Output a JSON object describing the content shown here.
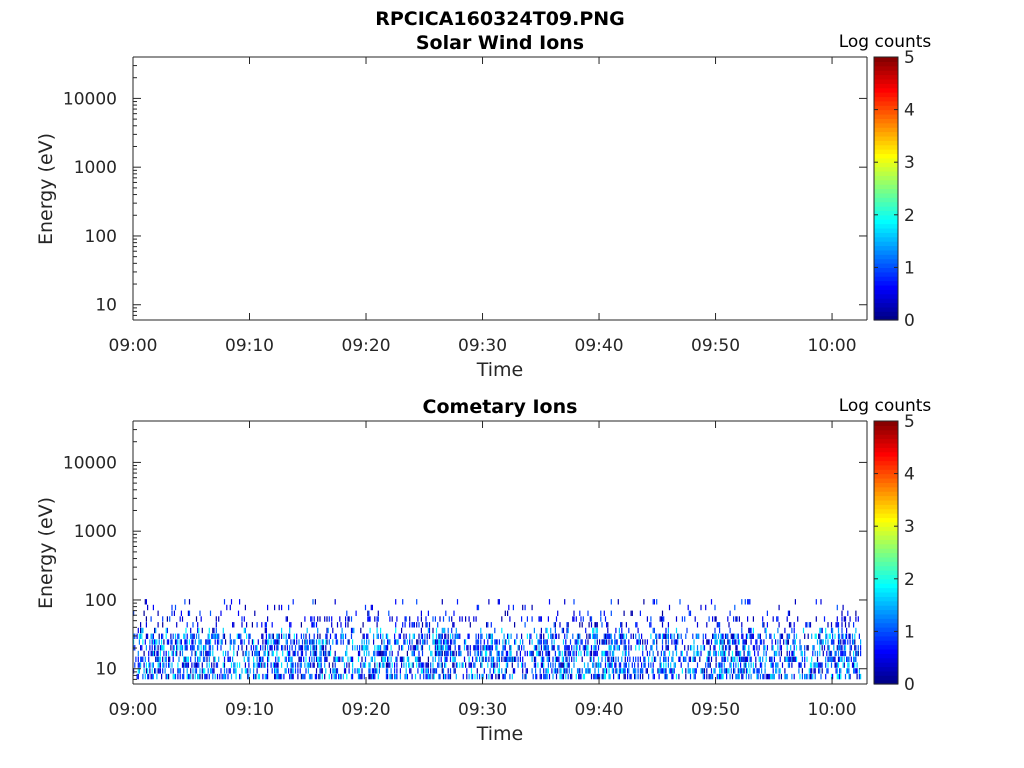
{
  "figure_title": "RPCICA160324T09.PNG",
  "chart_data": [
    {
      "type": "heatmap",
      "title": "Solar Wind Ions",
      "xlabel": "Time",
      "ylabel": "Energy (eV)",
      "x_ticks": [
        "09:00",
        "09:10",
        "09:20",
        "09:30",
        "09:40",
        "09:50",
        "10:00"
      ],
      "x_range_minutes": [
        0,
        63
      ],
      "y_scale": "log",
      "y_ticks": [
        10,
        100,
        1000,
        10000
      ],
      "y_tick_labels": [
        "10",
        "100",
        "1000",
        "10000"
      ],
      "y_range": [
        6,
        40000
      ],
      "colorbar": {
        "label": "Log counts",
        "range": [
          0,
          5
        ],
        "ticks": [
          "0",
          "1",
          "2",
          "3",
          "4",
          "5"
        ],
        "colormap": "jet"
      },
      "data_note": "empty",
      "cells": []
    },
    {
      "type": "heatmap",
      "title": "Cometary Ions",
      "xlabel": "Time",
      "ylabel": "Energy (eV)",
      "x_ticks": [
        "09:00",
        "09:10",
        "09:20",
        "09:30",
        "09:40",
        "09:50",
        "10:00"
      ],
      "x_range_minutes": [
        0,
        63
      ],
      "y_scale": "log",
      "y_ticks": [
        10,
        100,
        1000,
        10000
      ],
      "y_tick_labels": [
        "10",
        "100",
        "1000",
        "10000"
      ],
      "y_range": [
        6,
        40000
      ],
      "colorbar": {
        "label": "Log counts",
        "range": [
          0,
          5
        ],
        "ticks": [
          "0",
          "1",
          "2",
          "3",
          "4",
          "5"
        ],
        "colormap": "jet"
      },
      "energy_bins_eV": [
        7,
        8.5,
        10.3,
        12.5,
        15.2,
        18.4,
        22.3,
        27,
        32.8,
        39.7,
        48.2,
        58.4,
        70.8,
        85.8
      ],
      "cells": []
    }
  ],
  "colors": {
    "axis": "#262626",
    "background": "#ffffff"
  }
}
